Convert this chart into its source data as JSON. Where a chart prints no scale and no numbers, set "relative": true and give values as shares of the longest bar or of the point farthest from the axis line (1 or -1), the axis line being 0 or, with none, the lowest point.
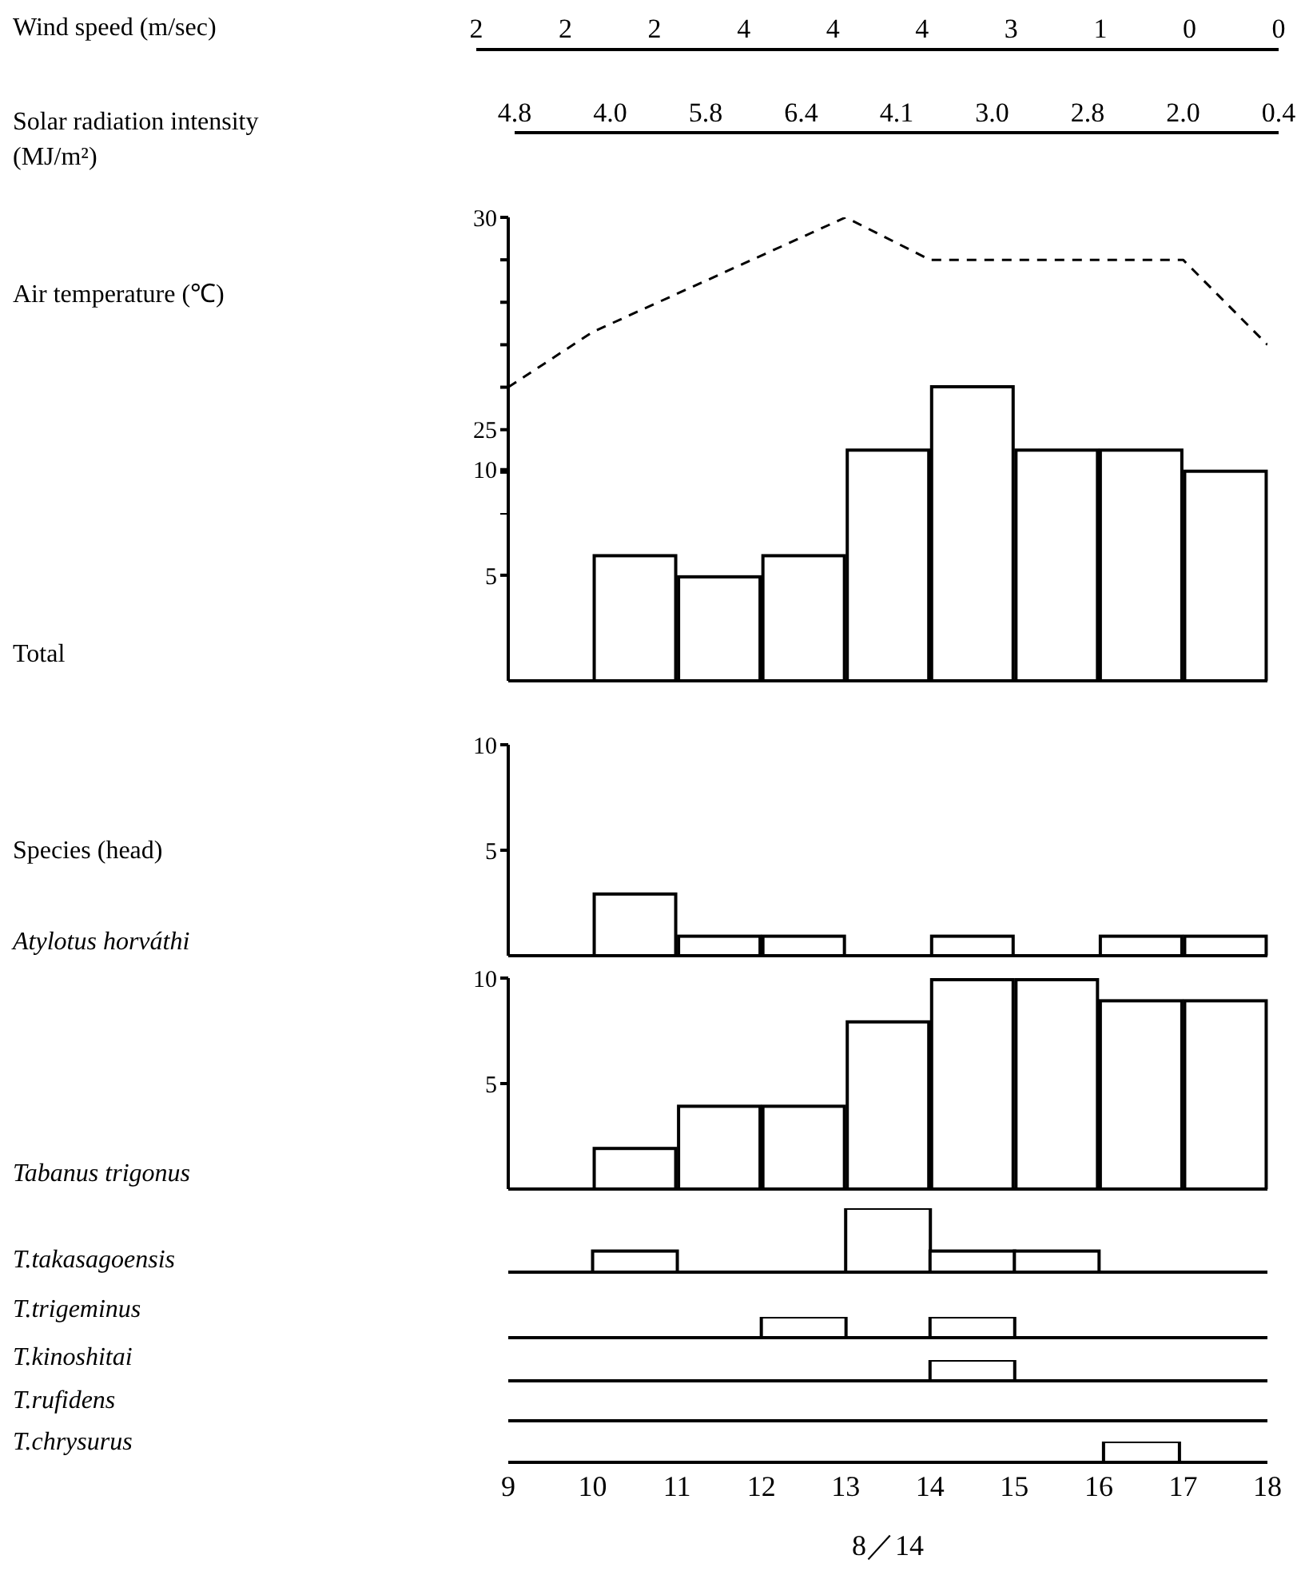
{
  "chart_data": [
    {
      "type": "other",
      "title": "Wind speed (m/sec)",
      "categories": [
        null,
        null,
        null,
        null,
        null,
        null,
        null,
        null,
        null,
        null
      ],
      "values": [
        2,
        2,
        2,
        4,
        4,
        4,
        3,
        1,
        0,
        0
      ],
      "data_labels": true
    },
    {
      "type": "other",
      "title": "Solar radiation intensity (MJ/m²)",
      "categories": [
        null,
        null,
        null,
        null,
        null,
        null,
        null,
        null,
        null
      ],
      "values": [
        4.8,
        4.0,
        5.8,
        6.4,
        4.1,
        3.0,
        2.8,
        2.0,
        0.4
      ],
      "value_labels": [
        "4.8",
        "4.0",
        "5.8",
        "6.4",
        "4.1",
        "3.0",
        "2.8",
        "2.0",
        "0.4"
      ]
    },
    {
      "type": "line",
      "ylabel": "Air temperature (℃)",
      "x": [
        9,
        10,
        13,
        14,
        17,
        18
      ],
      "values": [
        26,
        27.3,
        30,
        29,
        29,
        27
      ],
      "color": "#000000",
      "line_style": "dashed",
      "marker": "none",
      "xlim": [
        9,
        18
      ],
      "ylim": [
        23,
        30
      ],
      "yticks": [
        {
          "value": 23,
          "label": null
        },
        {
          "value": 24,
          "label": null
        },
        25,
        {
          "value": 26,
          "label": null
        },
        {
          "value": 27,
          "label": null
        },
        {
          "value": 28,
          "label": null
        },
        {
          "value": 29,
          "label": null
        },
        30
      ],
      "tick_labels": "y"
    },
    {
      "type": "bar",
      "ylabel": "Total",
      "categories": [
        null,
        null,
        null,
        null,
        null,
        null,
        null,
        null,
        null
      ],
      "values": [
        0,
        6,
        5,
        6,
        11,
        14,
        11,
        11,
        10
      ],
      "color": "#000000",
      "ylim": [
        0,
        14
      ],
      "yticks": [
        5,
        10
      ],
      "tick_labels": "y"
    },
    {
      "type": "bar",
      "ylabel": "Atylotus horváthi",
      "annotations": [
        "Species (head)"
      ],
      "categories": [
        null,
        null,
        null,
        null,
        null,
        null,
        null,
        null,
        null
      ],
      "values": [
        0,
        3,
        1,
        1,
        0,
        1,
        0,
        1,
        1
      ],
      "color": "#000000",
      "ylim": [
        0,
        10
      ],
      "yticks": [
        5,
        10
      ],
      "tick_labels": "y"
    },
    {
      "type": "bar",
      "ylabel": "Tabanus trigonus",
      "categories": [
        null,
        null,
        null,
        null,
        null,
        null,
        null,
        null,
        null
      ],
      "values": [
        0,
        2,
        4,
        4,
        8,
        10,
        10,
        9,
        9
      ],
      "color": "#000000",
      "ylim": [
        0,
        10
      ],
      "yticks": [
        5,
        10
      ],
      "tick_labels": "y"
    },
    {
      "type": "bar",
      "ylabel": "T.takasagoensis",
      "categories": [
        null,
        null,
        null,
        null,
        null,
        null,
        null,
        null,
        null
      ],
      "values": [
        0,
        0.33,
        0,
        0,
        1,
        0.33,
        0.33,
        0,
        0
      ],
      "color": "#000000",
      "relative": true,
      "tick_labels": false
    },
    {
      "type": "bar",
      "ylabel": "T.trigeminus",
      "categories": [
        null,
        null,
        null,
        null,
        null,
        null,
        null,
        null,
        null
      ],
      "values": [
        0,
        0,
        0,
        1,
        0,
        1,
        0,
        0,
        0
      ],
      "color": "#000000",
      "relative": true,
      "tick_labels": false
    },
    {
      "type": "bar",
      "ylabel": "T.kinoshitai",
      "categories": [
        null,
        null,
        null,
        null,
        null,
        null,
        null,
        null,
        null
      ],
      "values": [
        0,
        0,
        0,
        0,
        0,
        1,
        0,
        0,
        0
      ],
      "color": "#000000",
      "relative": true,
      "tick_labels": false
    },
    {
      "type": "other",
      "ylabel": "T.rufidens",
      "categories": [
        null,
        null,
        null,
        null,
        null,
        null,
        null,
        null,
        null
      ]
    },
    {
      "type": "bar",
      "ylabel": "T.chrysurus",
      "xlabel": "8／14",
      "x": [
        9.5,
        10.5,
        11.5,
        12.5,
        13.5,
        14.5,
        15.5,
        16.5,
        17.5
      ],
      "values": [
        0,
        0,
        0,
        0,
        0,
        0,
        0,
        1,
        0
      ],
      "color": "#000000",
      "relative": true,
      "xlim": [
        9,
        18
      ],
      "xticks": [
        9,
        10,
        11,
        12,
        13,
        14,
        15,
        16,
        17,
        18
      ],
      "tick_labels": "x"
    }
  ]
}
